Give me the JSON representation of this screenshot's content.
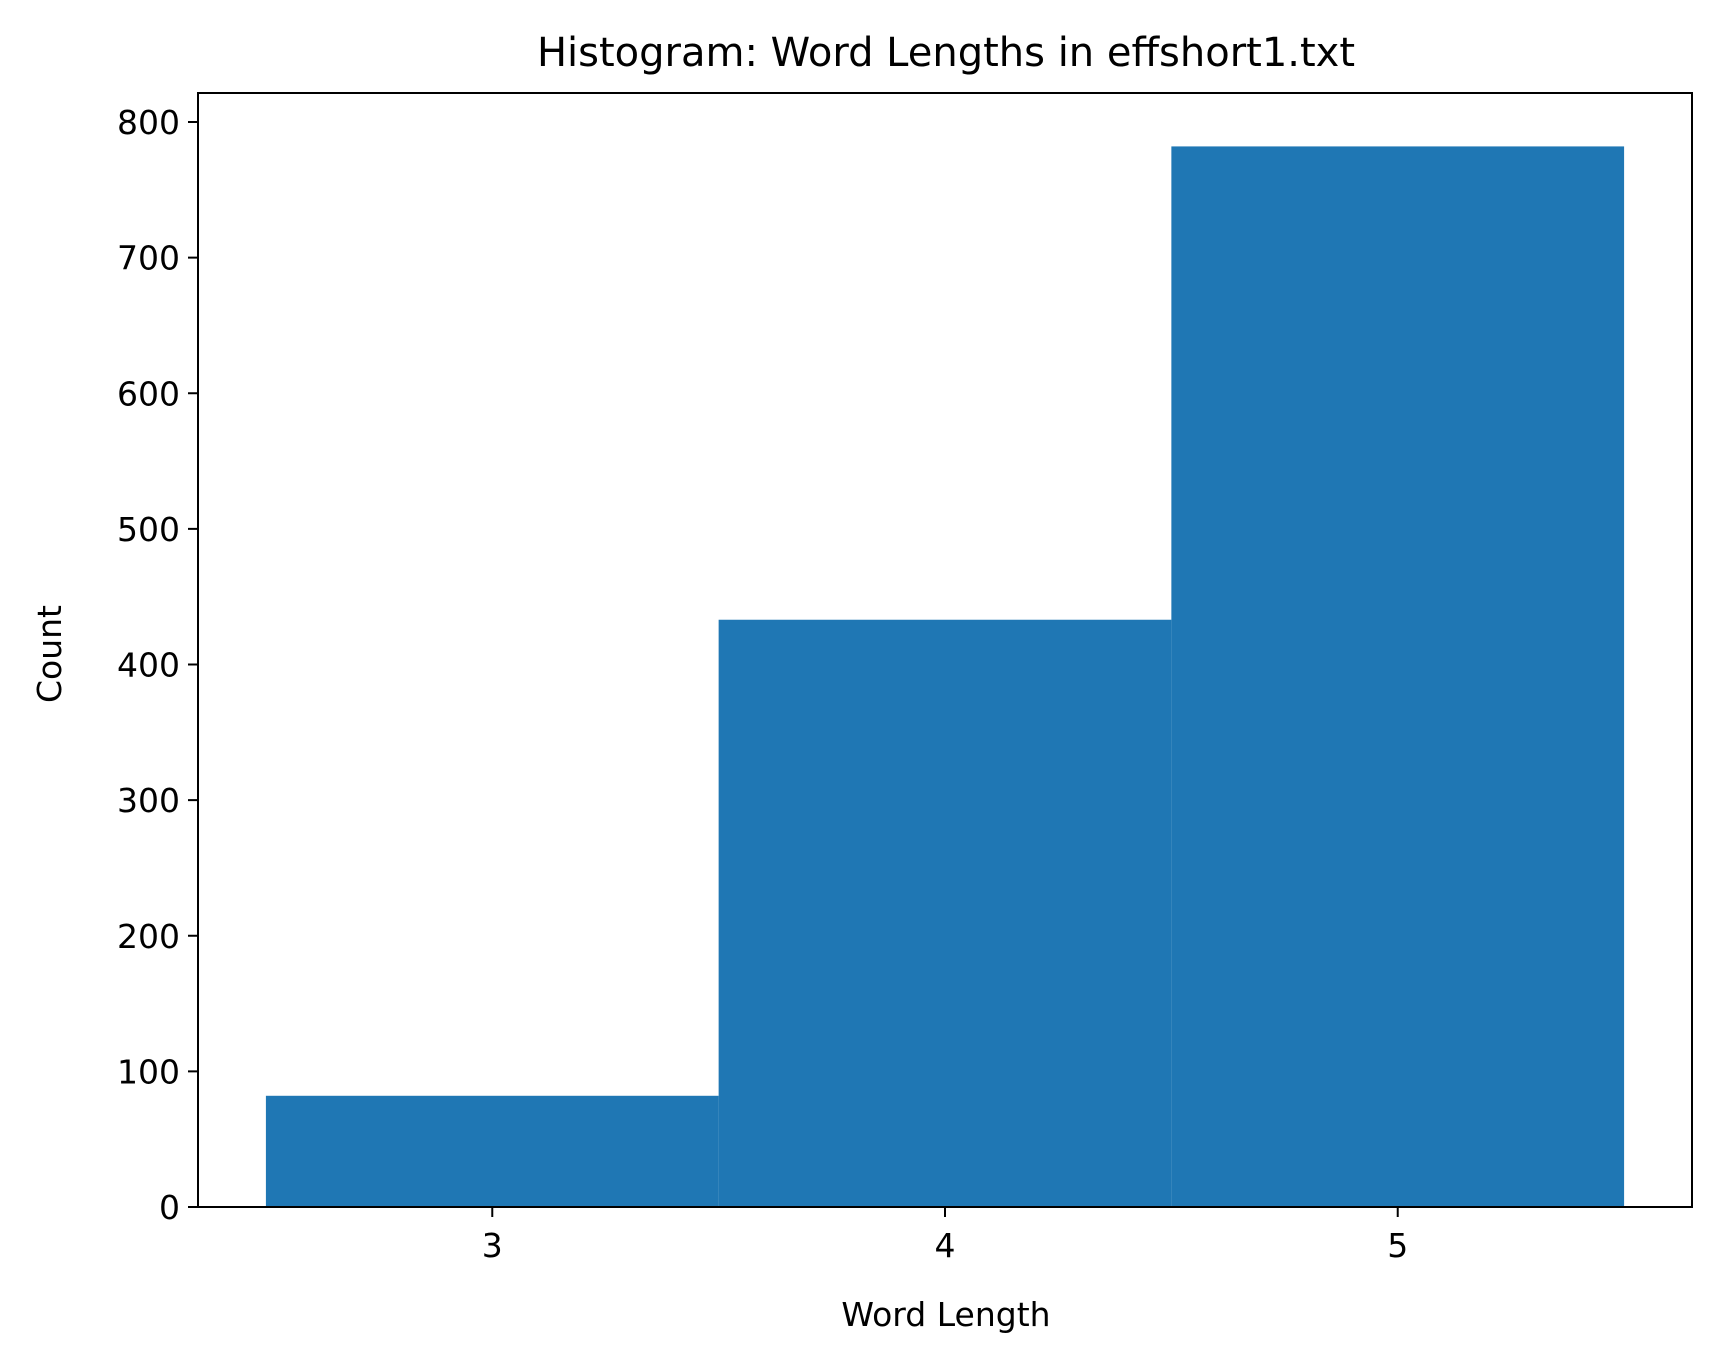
{
  "chart_data": {
    "type": "bar",
    "title": "Histogram: Word Lengths in effshort1.txt",
    "xlabel": "Word Length",
    "ylabel": "Count",
    "bins": [
      {
        "start": 2.5,
        "end": 3.5,
        "count": 82
      },
      {
        "start": 3.5,
        "end": 4.5,
        "count": 433
      },
      {
        "start": 4.5,
        "end": 5.5,
        "count": 782
      }
    ],
    "xlim": [
      2.35,
      5.65
    ],
    "ylim": [
      0,
      800
    ],
    "xticks": [
      3,
      4,
      5
    ],
    "yticks": [
      0,
      100,
      200,
      300,
      400,
      500,
      600,
      700,
      800
    ],
    "grid": false,
    "colors": {
      "bar": "#1f77b4"
    }
  }
}
